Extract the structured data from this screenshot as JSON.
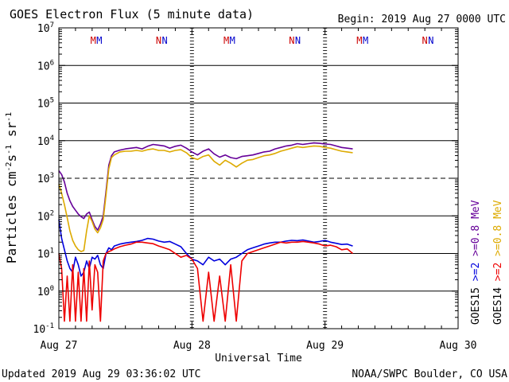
{
  "chart_data": {
    "type": "line",
    "title": "GOES Electron Flux (5 minute data)",
    "begin_label": "Begin: 2019 Aug 27 0000 UTC",
    "xlabel": "Universal Time",
    "ylabel": "Particles cm^-2 s^-1 sr^-1",
    "ylabel_parts": {
      "base": "Particles cm",
      "e1": "-2",
      "s": "s",
      "e2": "-1",
      "sr": " sr",
      "e3": "-1"
    },
    "yscale": "log",
    "ylim_exp": [
      -1,
      7
    ],
    "y_tick_exponents": [
      -1,
      0,
      1,
      2,
      3,
      4,
      5,
      6,
      7
    ],
    "y_tick_base": "10",
    "x_days": [
      "Aug 27",
      "Aug 28",
      "Aug 29",
      "Aug 30"
    ],
    "xlim_hours": [
      0,
      72
    ],
    "threshold_exp": 3,
    "mn_markers": [
      {
        "label": "M",
        "hour": 6.2,
        "color": "#cc0000"
      },
      {
        "label": "M",
        "hour": 7.3,
        "color": "#0000cc"
      },
      {
        "label": "N",
        "hour": 18.0,
        "color": "#cc0000"
      },
      {
        "label": "N",
        "hour": 19.1,
        "color": "#0000cc"
      },
      {
        "label": "M",
        "hour": 30.2,
        "color": "#cc0000"
      },
      {
        "label": "M",
        "hour": 31.3,
        "color": "#0000cc"
      },
      {
        "label": "N",
        "hour": 42.0,
        "color": "#cc0000"
      },
      {
        "label": "N",
        "hour": 43.1,
        "color": "#0000cc"
      },
      {
        "label": "M",
        "hour": 54.2,
        "color": "#cc0000"
      },
      {
        "label": "M",
        "hour": 55.3,
        "color": "#0000cc"
      },
      {
        "label": "N",
        "hour": 66.0,
        "color": "#cc0000"
      },
      {
        "label": "N",
        "hour": 67.1,
        "color": "#0000cc"
      }
    ],
    "series": [
      {
        "name": "GOES15 >=0.8 MeV",
        "color": "#660099",
        "x": [
          0,
          0.5,
          1,
          1.5,
          2,
          2.5,
          3,
          3.5,
          4,
          4.5,
          5,
          5.5,
          6,
          6.5,
          7,
          7.5,
          8,
          8.5,
          9,
          9.5,
          10,
          11,
          12,
          13,
          14,
          15,
          16,
          17,
          18,
          19,
          20,
          21,
          22,
          23,
          24,
          25,
          26,
          27,
          28,
          29,
          30,
          31,
          32,
          33,
          34,
          35,
          36,
          37,
          38,
          39,
          40,
          41,
          42,
          43,
          44,
          45,
          46,
          47,
          48,
          49,
          50,
          51,
          52,
          53
        ],
        "logv": [
          3.2,
          3.1,
          2.9,
          2.6,
          2.4,
          2.25,
          2.15,
          2.05,
          1.98,
          1.93,
          2.05,
          2.1,
          1.9,
          1.72,
          1.62,
          1.78,
          2.0,
          2.65,
          3.35,
          3.6,
          3.7,
          3.75,
          3.78,
          3.8,
          3.82,
          3.78,
          3.85,
          3.9,
          3.88,
          3.86,
          3.8,
          3.85,
          3.88,
          3.8,
          3.7,
          3.62,
          3.72,
          3.78,
          3.65,
          3.56,
          3.62,
          3.55,
          3.52,
          3.58,
          3.6,
          3.62,
          3.66,
          3.7,
          3.72,
          3.78,
          3.82,
          3.86,
          3.88,
          3.92,
          3.9,
          3.92,
          3.94,
          3.93,
          3.91,
          3.9,
          3.86,
          3.82,
          3.8,
          3.78
        ]
      },
      {
        "name": "GOES14 >=0.8 MeV",
        "color": "#ddaa00",
        "x": [
          0,
          0.5,
          1,
          1.5,
          2,
          2.5,
          3,
          3.5,
          4,
          4.5,
          5,
          5.5,
          6,
          6.5,
          7,
          7.5,
          8,
          8.5,
          9,
          9.5,
          10,
          11,
          12,
          13,
          14,
          15,
          16,
          17,
          18,
          19,
          20,
          21,
          22,
          23,
          24,
          25,
          26,
          27,
          28,
          29,
          30,
          31,
          32,
          33,
          34,
          35,
          36,
          37,
          38,
          39,
          40,
          41,
          42,
          43,
          44,
          45,
          46,
          47,
          48,
          49,
          50,
          51,
          52,
          53
        ],
        "logv": [
          2.85,
          2.6,
          2.3,
          1.95,
          1.6,
          1.35,
          1.2,
          1.1,
          1.05,
          1.08,
          1.6,
          2.0,
          1.85,
          1.65,
          1.55,
          1.68,
          1.9,
          2.55,
          3.25,
          3.55,
          3.62,
          3.7,
          3.72,
          3.72,
          3.74,
          3.72,
          3.76,
          3.78,
          3.74,
          3.74,
          3.7,
          3.74,
          3.76,
          3.68,
          3.55,
          3.5,
          3.58,
          3.62,
          3.45,
          3.35,
          3.48,
          3.4,
          3.3,
          3.4,
          3.48,
          3.5,
          3.55,
          3.6,
          3.62,
          3.66,
          3.72,
          3.76,
          3.8,
          3.84,
          3.82,
          3.84,
          3.86,
          3.85,
          3.82,
          3.8,
          3.76,
          3.72,
          3.7,
          3.68
        ]
      },
      {
        "name": "GOES15 >=2 MeV",
        "color": "#0000dd",
        "x": [
          0,
          0.5,
          1,
          1.5,
          2,
          2.5,
          3,
          3.5,
          4,
          4.5,
          5,
          5.5,
          6,
          6.5,
          7,
          7.5,
          8,
          8.5,
          9,
          9.5,
          10,
          11,
          12,
          13,
          14,
          15,
          16,
          17,
          18,
          19,
          20,
          21,
          22,
          23,
          24,
          25,
          26,
          27,
          28,
          29,
          30,
          31,
          32,
          33,
          34,
          35,
          36,
          37,
          38,
          39,
          40,
          41,
          42,
          43,
          44,
          45,
          46,
          47,
          48,
          49,
          50,
          51,
          52,
          53
        ],
        "logv": [
          1.9,
          1.4,
          1.1,
          0.8,
          0.6,
          0.5,
          0.9,
          0.7,
          0.4,
          0.5,
          0.8,
          0.6,
          0.9,
          0.85,
          0.95,
          0.7,
          0.6,
          1.0,
          1.15,
          1.1,
          1.2,
          1.25,
          1.28,
          1.3,
          1.32,
          1.35,
          1.4,
          1.38,
          1.33,
          1.3,
          1.32,
          1.25,
          1.18,
          1.0,
          0.85,
          0.8,
          0.7,
          0.9,
          0.8,
          0.85,
          0.7,
          0.85,
          0.9,
          1.0,
          1.1,
          1.15,
          1.2,
          1.25,
          1.28,
          1.3,
          1.3,
          1.33,
          1.35,
          1.34,
          1.36,
          1.33,
          1.3,
          1.32,
          1.35,
          1.3,
          1.27,
          1.24,
          1.25,
          1.2
        ]
      },
      {
        "name": "GOES14 >=2 MeV",
        "color": "#ee0000",
        "x": [
          0,
          0.5,
          1,
          1.5,
          2,
          2.5,
          3,
          3.5,
          4,
          4.5,
          5,
          5.5,
          6,
          6.5,
          7,
          7.5,
          8,
          8.5,
          9,
          9.5,
          10,
          11,
          12,
          13,
          14,
          15,
          16,
          17,
          18,
          19,
          20,
          21,
          22,
          23,
          24,
          25,
          26,
          27,
          28,
          29,
          30,
          31,
          32,
          33,
          34,
          35,
          36,
          37,
          38,
          39,
          40,
          41,
          42,
          43,
          44,
          45,
          46,
          47,
          48,
          49,
          50,
          51,
          52,
          53
        ],
        "logv": [
          1.0,
          0.6,
          -0.8,
          0.4,
          -0.8,
          0.7,
          -0.8,
          0.5,
          -0.8,
          0.6,
          -0.8,
          0.8,
          -0.5,
          0.7,
          0.5,
          -0.8,
          0.8,
          1.0,
          1.05,
          1.08,
          1.12,
          1.18,
          1.22,
          1.25,
          1.3,
          1.3,
          1.28,
          1.26,
          1.2,
          1.15,
          1.1,
          1.0,
          0.9,
          0.95,
          0.85,
          0.6,
          -0.8,
          0.5,
          -0.8,
          0.4,
          -0.8,
          0.7,
          -0.8,
          0.8,
          1.0,
          1.05,
          1.1,
          1.15,
          1.2,
          1.25,
          1.3,
          1.28,
          1.3,
          1.3,
          1.32,
          1.3,
          1.28,
          1.25,
          1.2,
          1.22,
          1.18,
          1.1,
          1.12,
          1.0
        ]
      }
    ],
    "right_legend": [
      {
        "label": "GOES15",
        "color": "#000000"
      },
      {
        "label": ">=2",
        "color": "#0000dd"
      },
      {
        "label": ">=0.8 MeV",
        "color": "#660099"
      },
      {
        "label": "GOES14",
        "color": "#000000"
      },
      {
        "label": ">=2",
        "color": "#ee0000"
      },
      {
        "label": ">=0.8 MeV",
        "color": "#ddaa00"
      }
    ]
  },
  "footer": {
    "updated": "Updated 2019 Aug 29 03:36:02 UTC",
    "credit": "NOAA/SWPC Boulder, CO USA"
  }
}
